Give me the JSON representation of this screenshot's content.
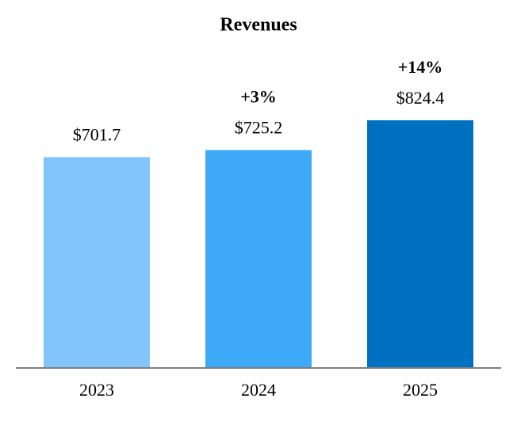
{
  "chart_data": {
    "type": "bar",
    "title": "Revenues",
    "categories": [
      "2023",
      "2024",
      "2025"
    ],
    "values": [
      701.7,
      725.2,
      824.4
    ],
    "value_labels": [
      "$701.7",
      "$725.2",
      "$824.4"
    ],
    "growth_labels": [
      null,
      "+3%",
      "+14%"
    ],
    "colors": [
      "#82c5fb",
      "#3eaaf7",
      "#0070c0"
    ]
  }
}
